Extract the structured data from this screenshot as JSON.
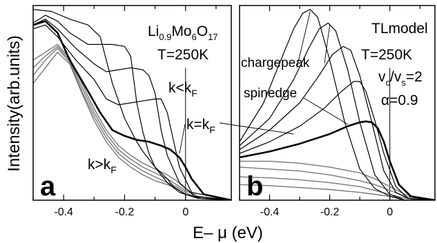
{
  "figure": {
    "ylabel": "Intensity(arb.units)",
    "xlabel": "E– μ (eV)"
  },
  "chart_data": [
    {
      "type": "line",
      "panel_label": "a",
      "title": {
        "base": "Li",
        "sub1": "0.9",
        "mid": "Mo",
        "sub2": "6",
        "mid2": "O",
        "sub3": "17"
      },
      "temperature": "T=250K",
      "xlim": [
        -0.5,
        0.15
      ],
      "ylim": [
        0,
        1
      ],
      "xticks": [
        -0.4,
        -0.2,
        0
      ],
      "xtick_labels": [
        "-0.4",
        "-0.2",
        "0"
      ],
      "vline_x": 0,
      "annotations": {
        "k_lt": {
          "base": "k<k",
          "sub": "F"
        },
        "k_eq": {
          "base": "k=k",
          "sub": "F"
        },
        "k_gt": {
          "base": "k>k",
          "sub": "F"
        }
      },
      "series": [
        {
          "group": "k<kF",
          "color": "#000000",
          "width": 1.2,
          "x": [
            -0.5,
            -0.44,
            -0.38,
            -0.32,
            -0.28,
            -0.24,
            -0.2,
            -0.16,
            -0.14,
            -0.12,
            -0.1,
            -0.08,
            -0.06,
            -0.04,
            0,
            0.05,
            0.15
          ],
          "y": [
            0.98,
            0.97,
            0.93,
            0.9,
            0.84,
            0.6,
            0.42,
            0.3,
            0.25,
            0.21,
            0.17,
            0.14,
            0.11,
            0.07,
            0.03,
            0.01,
            0.0
          ]
        },
        {
          "group": "k<kF",
          "color": "#000000",
          "width": 1.2,
          "x": [
            -0.5,
            -0.46,
            -0.42,
            -0.38,
            -0.32,
            -0.28,
            -0.24,
            -0.2,
            -0.18,
            -0.16,
            -0.14,
            -0.12,
            -0.1,
            -0.06,
            -0.02,
            0.04,
            0.15
          ],
          "y": [
            0.91,
            0.95,
            0.92,
            0.86,
            0.8,
            0.8,
            0.8,
            0.79,
            0.74,
            0.5,
            0.35,
            0.24,
            0.17,
            0.09,
            0.04,
            0.01,
            0.0
          ]
        },
        {
          "group": "k<kF",
          "color": "#000000",
          "width": 1.2,
          "x": [
            -0.5,
            -0.46,
            -0.42,
            -0.36,
            -0.3,
            -0.26,
            -0.22,
            -0.18,
            -0.14,
            -0.12,
            -0.1,
            -0.08,
            -0.06,
            -0.02,
            0.03,
            0.15
          ],
          "y": [
            0.9,
            0.93,
            0.88,
            0.78,
            0.7,
            0.66,
            0.67,
            0.68,
            0.67,
            0.64,
            0.55,
            0.36,
            0.23,
            0.09,
            0.02,
            0.0
          ]
        },
        {
          "group": "k<kF",
          "color": "#000000",
          "width": 1.2,
          "x": [
            -0.5,
            -0.46,
            -0.42,
            -0.36,
            -0.3,
            -0.26,
            -0.22,
            -0.18,
            -0.14,
            -0.1,
            -0.08,
            -0.06,
            -0.04,
            -0.02,
            0.02,
            0.15
          ],
          "y": [
            0.88,
            0.9,
            0.84,
            0.72,
            0.62,
            0.52,
            0.49,
            0.5,
            0.51,
            0.52,
            0.52,
            0.45,
            0.31,
            0.17,
            0.04,
            0.0
          ]
        },
        {
          "group": "k=kF",
          "color": "#000000",
          "width": 2.6,
          "x": [
            -0.5,
            -0.46,
            -0.42,
            -0.38,
            -0.32,
            -0.28,
            -0.24,
            -0.2,
            -0.16,
            -0.12,
            -0.08,
            -0.05,
            -0.02,
            0.0,
            0.02,
            0.06,
            0.15
          ],
          "y": [
            0.9,
            0.92,
            0.86,
            0.72,
            0.56,
            0.45,
            0.36,
            0.33,
            0.31,
            0.3,
            0.28,
            0.26,
            0.22,
            0.17,
            0.11,
            0.03,
            0.0
          ]
        },
        {
          "group": "k>kF",
          "color": "#777777",
          "width": 1.4,
          "x": [
            -0.5,
            -0.46,
            -0.42,
            -0.38,
            -0.34,
            -0.3,
            -0.26,
            -0.22,
            -0.18,
            -0.14,
            -0.1,
            -0.06,
            -0.03,
            0.0,
            0.04,
            0.15
          ],
          "y": [
            0.72,
            0.76,
            0.8,
            0.73,
            0.6,
            0.47,
            0.36,
            0.28,
            0.23,
            0.19,
            0.16,
            0.13,
            0.1,
            0.06,
            0.02,
            0.0
          ]
        },
        {
          "group": "k>kF",
          "color": "#777777",
          "width": 1.4,
          "x": [
            -0.5,
            -0.46,
            -0.42,
            -0.38,
            -0.34,
            -0.3,
            -0.26,
            -0.22,
            -0.18,
            -0.14,
            -0.1,
            -0.06,
            -0.03,
            0.0,
            0.04,
            0.15
          ],
          "y": [
            0.68,
            0.74,
            0.79,
            0.72,
            0.58,
            0.45,
            0.34,
            0.26,
            0.21,
            0.17,
            0.14,
            0.11,
            0.08,
            0.05,
            0.02,
            0.0
          ]
        },
        {
          "group": "k>kF",
          "color": "#777777",
          "width": 1.4,
          "x": [
            -0.5,
            -0.46,
            -0.42,
            -0.38,
            -0.34,
            -0.3,
            -0.26,
            -0.22,
            -0.18,
            -0.14,
            -0.1,
            -0.06,
            -0.03,
            0.0,
            0.04,
            0.15
          ],
          "y": [
            0.64,
            0.72,
            0.78,
            0.71,
            0.56,
            0.43,
            0.32,
            0.24,
            0.19,
            0.15,
            0.12,
            0.09,
            0.07,
            0.04,
            0.01,
            0.0
          ]
        },
        {
          "group": "k>kF",
          "color": "#777777",
          "width": 1.4,
          "x": [
            -0.5,
            -0.46,
            -0.42,
            -0.38,
            -0.34,
            -0.3,
            -0.26,
            -0.22,
            -0.18,
            -0.14,
            -0.1,
            -0.06,
            -0.03,
            0.0,
            0.04,
            0.15
          ],
          "y": [
            0.6,
            0.68,
            0.76,
            0.7,
            0.55,
            0.41,
            0.3,
            0.22,
            0.17,
            0.13,
            0.1,
            0.08,
            0.06,
            0.03,
            0.01,
            0.0
          ]
        }
      ]
    },
    {
      "type": "line",
      "panel_label": "b",
      "title": "TLmodel",
      "temperature": "T=250K",
      "ratio_label": {
        "v1": "v",
        "s1": "c",
        "slash": "/v",
        "s2": "s",
        "eq": "=2"
      },
      "alpha_label": "α=0.9",
      "charge_label": "chargepeak",
      "spin_label": "spinedge",
      "xlim": [
        -0.5,
        0.15
      ],
      "ylim": [
        0,
        1
      ],
      "xticks": [
        -0.4,
        -0.2,
        0
      ],
      "xtick_labels": [
        "-0.4",
        "-0.2",
        "0"
      ],
      "vline_x": 0,
      "series": [
        {
          "group": "k<kF",
          "color": "#000000",
          "width": 1.2,
          "x": [
            -0.5,
            -0.42,
            -0.36,
            -0.32,
            -0.29,
            -0.265,
            -0.24,
            -0.2,
            -0.15,
            -0.1,
            -0.05,
            0.0,
            0.05,
            0.15
          ],
          "y": [
            0.3,
            0.5,
            0.73,
            0.88,
            0.96,
            0.98,
            0.94,
            0.72,
            0.4,
            0.16,
            0.06,
            0.02,
            0.0,
            0.0
          ]
        },
        {
          "group": "k<kF",
          "color": "#000000",
          "width": 1.2,
          "x": [
            -0.5,
            -0.4,
            -0.32,
            -0.27,
            -0.235,
            -0.205,
            -0.18,
            -0.14,
            -0.1,
            -0.05,
            0.0,
            0.05,
            0.15
          ],
          "y": [
            0.28,
            0.42,
            0.62,
            0.78,
            0.88,
            0.91,
            0.87,
            0.67,
            0.4,
            0.13,
            0.03,
            0.0,
            0.0
          ]
        },
        {
          "group": "k<kF",
          "color": "#000000",
          "width": 1.2,
          "x": [
            -0.5,
            -0.4,
            -0.3,
            -0.24,
            -0.19,
            -0.155,
            -0.13,
            -0.1,
            -0.06,
            -0.02,
            0.02,
            0.06,
            0.15
          ],
          "y": [
            0.26,
            0.36,
            0.5,
            0.63,
            0.75,
            0.79,
            0.77,
            0.64,
            0.4,
            0.15,
            0.04,
            0.01,
            0.0
          ]
        },
        {
          "group": "k<kF",
          "color": "#000000",
          "width": 1.2,
          "x": [
            -0.5,
            -0.4,
            -0.3,
            -0.22,
            -0.16,
            -0.12,
            -0.1,
            -0.08,
            -0.05,
            -0.02,
            0.02,
            0.06,
            0.15
          ],
          "y": [
            0.24,
            0.3,
            0.38,
            0.47,
            0.56,
            0.61,
            0.61,
            0.56,
            0.41,
            0.24,
            0.07,
            0.01,
            0.0
          ]
        },
        {
          "group": "k=kF",
          "color": "#000000",
          "width": 2.6,
          "x": [
            -0.5,
            -0.4,
            -0.3,
            -0.2,
            -0.14,
            -0.1,
            -0.08,
            -0.06,
            -0.04,
            -0.02,
            0.0,
            0.03,
            0.07,
            0.15
          ],
          "y": [
            0.22,
            0.25,
            0.29,
            0.34,
            0.38,
            0.4,
            0.405,
            0.4,
            0.37,
            0.3,
            0.2,
            0.08,
            0.02,
            0.0
          ]
        },
        {
          "group": "k>kF",
          "color": "#777777",
          "width": 1.4,
          "x": [
            -0.5,
            -0.4,
            -0.3,
            -0.2,
            -0.1,
            -0.05,
            0.0,
            0.05,
            0.1,
            0.15
          ],
          "y": [
            0.2,
            0.2,
            0.19,
            0.17,
            0.14,
            0.11,
            0.07,
            0.03,
            0.01,
            0.0
          ]
        },
        {
          "group": "k>kF",
          "color": "#777777",
          "width": 1.4,
          "x": [
            -0.5,
            -0.4,
            -0.3,
            -0.2,
            -0.1,
            -0.05,
            0.0,
            0.05,
            0.1,
            0.15
          ],
          "y": [
            0.17,
            0.16,
            0.15,
            0.13,
            0.1,
            0.08,
            0.05,
            0.02,
            0.01,
            0.0
          ]
        },
        {
          "group": "k>kF",
          "color": "#777777",
          "width": 1.4,
          "x": [
            -0.5,
            -0.4,
            -0.3,
            -0.2,
            -0.1,
            -0.05,
            0.0,
            0.05,
            0.1,
            0.15
          ],
          "y": [
            0.12,
            0.115,
            0.105,
            0.09,
            0.07,
            0.05,
            0.03,
            0.01,
            0.0,
            0.0
          ]
        },
        {
          "group": "k>kF",
          "color": "#777777",
          "width": 1.4,
          "x": [
            -0.5,
            -0.4,
            -0.3,
            -0.2,
            -0.1,
            -0.05,
            0.0,
            0.05,
            0.1,
            0.15
          ],
          "y": [
            0.08,
            0.075,
            0.065,
            0.055,
            0.04,
            0.03,
            0.02,
            0.01,
            0.0,
            0.0
          ]
        }
      ]
    }
  ]
}
